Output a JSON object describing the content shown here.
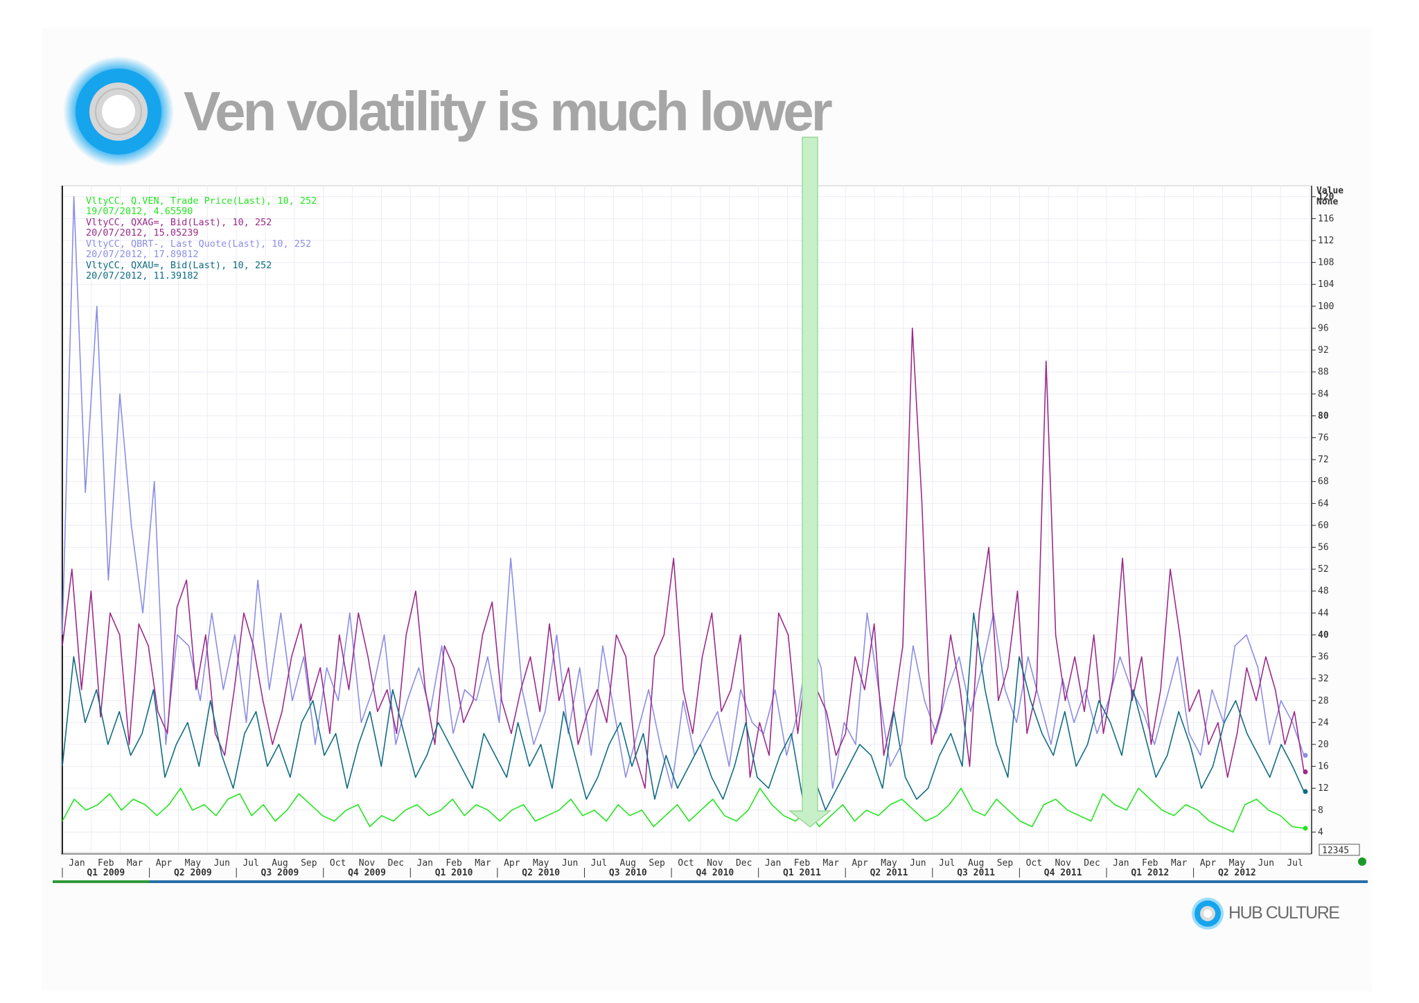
{
  "slide": {
    "title": "Ven volatility is much lower"
  },
  "footer": {
    "brand": "HUB CULTURE"
  },
  "colors": {
    "title": "#a6a6a6",
    "logo_blue": "#1aa8ef",
    "series_ven": "#22e61e",
    "series_xag": "#9b2a8a",
    "series_brt": "#7b7be0",
    "series_xau": "#0f6c82",
    "arrow": "#c8f0c8"
  },
  "chart_data": {
    "type": "line",
    "y_axis_header": [
      "Value",
      "None"
    ],
    "ylim": [
      0,
      122
    ],
    "y_ticks": [
      4,
      8,
      12,
      16,
      20,
      24,
      28,
      32,
      36,
      40,
      44,
      48,
      52,
      56,
      60,
      64,
      68,
      72,
      76,
      80,
      84,
      88,
      92,
      96,
      100,
      104,
      108,
      112,
      116,
      120
    ],
    "y_ticks_bold": [
      40,
      80,
      120
    ],
    "x_month_labels": [
      "Jan",
      "Feb",
      "Mar",
      "Apr",
      "May",
      "Jun",
      "Jul",
      "Aug",
      "Sep",
      "Oct",
      "Nov",
      "Dec",
      "Jan",
      "Feb",
      "Mar",
      "Apr",
      "May",
      "Jun",
      "Jul",
      "Aug",
      "Sep",
      "Oct",
      "Nov",
      "Dec",
      "Jan",
      "Feb",
      "Mar",
      "Apr",
      "May",
      "Jun",
      "Jul",
      "Aug",
      "Sep",
      "Oct",
      "Nov",
      "Dec",
      "Jan",
      "Feb",
      "Mar",
      "Apr",
      "May",
      "Jun",
      "Jul"
    ],
    "x_quarter_labels": [
      "Q1 2009",
      "Q2 2009",
      "Q3 2009",
      "Q4 2009",
      "Q1 2010",
      "Q2 2010",
      "Q3 2010",
      "Q4 2010",
      "Q1 2011",
      "Q2 2011",
      "Q3 2011",
      "Q4 2011",
      "Q1 2012",
      "Q2 2012"
    ],
    "x_range": [
      "2009-01",
      "2012-07"
    ],
    "corner_label": "12345",
    "legend": [
      {
        "name": "VltyCC, Q.VEN, Trade Price(Last), 10, 252",
        "last": "19/07/2012, 4.65590",
        "color": "#22e61e"
      },
      {
        "name": "VltyCC, QXAG=, Bid(Last), 10, 252",
        "last": "20/07/2012, 15.05239",
        "color": "#9b2a8a"
      },
      {
        "name": "VltyCC, QBRT-, Last Quote(Last), 10, 252",
        "last": "20/07/2012, 17.89812",
        "color": "#8c8ce6"
      },
      {
        "name": "VltyCC, QXAU=, Bid(Last), 10, 252",
        "last": "20/07/2012, 11.39182",
        "color": "#0f6c82"
      }
    ],
    "series": [
      {
        "name": "VltyCC, Q.VEN, Trade Price(Last), 10, 252",
        "color": "#22e61e",
        "values": [
          6,
          10,
          8,
          9,
          11,
          8,
          10,
          9,
          7,
          9,
          12,
          8,
          9,
          7,
          10,
          11,
          7,
          9,
          6,
          8,
          11,
          9,
          7,
          6,
          8,
          9,
          5,
          7,
          6,
          8,
          9,
          7,
          8,
          10,
          7,
          9,
          8,
          6,
          8,
          9,
          6,
          7,
          8,
          10,
          7,
          8,
          6,
          9,
          7,
          8,
          5,
          7,
          9,
          6,
          8,
          10,
          7,
          6,
          8,
          12,
          9,
          7,
          6,
          8,
          5,
          7,
          9,
          6,
          8,
          7,
          9,
          10,
          8,
          6,
          7,
          9,
          12,
          8,
          7,
          10,
          8,
          6,
          5,
          9,
          10,
          8,
          7,
          6,
          11,
          9,
          8,
          12,
          10,
          8,
          7,
          9,
          8,
          6,
          5,
          4,
          9,
          10,
          8,
          7,
          5,
          4.7
        ]
      },
      {
        "name": "VltyCC, QXAG=, Bid(Last), 10, 252",
        "color": "#9b2a8a",
        "values": [
          38,
          52,
          30,
          48,
          25,
          44,
          40,
          20,
          42,
          38,
          26,
          22,
          45,
          50,
          30,
          40,
          22,
          18,
          30,
          44,
          38,
          28,
          20,
          26,
          36,
          42,
          28,
          34,
          22,
          40,
          30,
          44,
          36,
          26,
          30,
          22,
          40,
          48,
          30,
          20,
          38,
          34,
          24,
          28,
          40,
          46,
          28,
          22,
          30,
          36,
          26,
          42,
          28,
          34,
          20,
          26,
          30,
          24,
          40,
          36,
          18,
          12,
          36,
          40,
          54,
          30,
          22,
          36,
          44,
          26,
          30,
          40,
          14,
          24,
          18,
          44,
          40,
          22,
          36,
          30,
          26,
          18,
          22,
          36,
          30,
          42,
          18,
          26,
          38,
          96,
          64,
          20,
          26,
          40,
          30,
          16,
          44,
          56,
          28,
          34,
          48,
          22,
          30,
          90,
          40,
          28,
          36,
          26,
          40,
          22,
          32,
          54,
          28,
          36,
          20,
          30,
          52,
          40,
          26,
          30,
          20,
          24,
          14,
          22,
          34,
          28,
          36,
          30,
          20,
          26,
          15
        ]
      },
      {
        "name": "VltyCC, QBRT-, Last Quote(Last), 10, 252",
        "color": "#8c8ce6",
        "values": [
          40,
          120,
          66,
          100,
          50,
          84,
          60,
          44,
          68,
          20,
          40,
          38,
          28,
          44,
          30,
          40,
          24,
          50,
          30,
          44,
          28,
          36,
          20,
          34,
          28,
          44,
          24,
          30,
          40,
          20,
          28,
          34,
          26,
          38,
          22,
          30,
          28,
          36,
          24,
          54,
          30,
          20,
          26,
          40,
          22,
          34,
          18,
          38,
          26,
          14,
          22,
          30,
          20,
          12,
          28,
          18,
          22,
          26,
          16,
          30,
          24,
          22,
          30,
          18,
          26,
          40,
          34,
          12,
          24,
          20,
          44,
          30,
          16,
          20,
          38,
          28,
          22,
          30,
          36,
          26,
          34,
          44,
          30,
          24,
          36,
          28,
          20,
          32,
          24,
          30,
          22,
          28,
          36,
          30,
          26,
          20,
          28,
          36,
          22,
          18,
          30,
          24,
          38,
          40,
          34,
          20,
          28,
          24,
          18
        ]
      },
      {
        "name": "VltyCC, QXAU=, Bid(Last), 10, 252",
        "color": "#0f6c82",
        "values": [
          16,
          36,
          24,
          30,
          20,
          26,
          18,
          22,
          30,
          14,
          20,
          24,
          16,
          28,
          18,
          12,
          22,
          26,
          16,
          20,
          14,
          24,
          28,
          18,
          22,
          12,
          20,
          26,
          16,
          30,
          22,
          14,
          18,
          24,
          20,
          16,
          12,
          22,
          18,
          14,
          24,
          16,
          20,
          12,
          26,
          18,
          10,
          14,
          20,
          24,
          16,
          22,
          10,
          18,
          12,
          16,
          20,
          14,
          10,
          16,
          24,
          14,
          12,
          18,
          22,
          10,
          14,
          8,
          12,
          16,
          20,
          18,
          12,
          26,
          14,
          10,
          12,
          18,
          22,
          16,
          44,
          30,
          20,
          14,
          36,
          28,
          22,
          18,
          26,
          16,
          20,
          28,
          24,
          18,
          30,
          22,
          14,
          18,
          26,
          20,
          12,
          16,
          24,
          28,
          22,
          18,
          14,
          20,
          16,
          11.4
        ]
      }
    ]
  }
}
